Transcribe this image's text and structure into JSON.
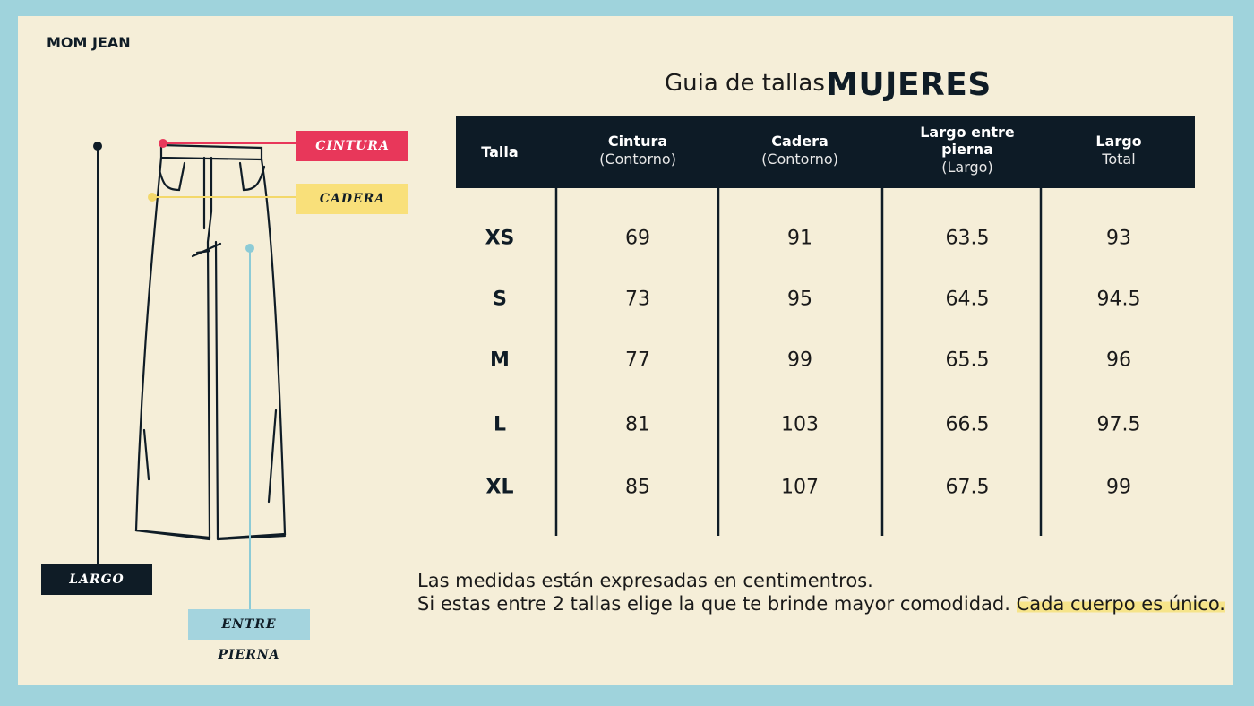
{
  "brand": "MOM JEAN",
  "title": {
    "prefix": "Guia de tallas",
    "emphasis": "MUJERES"
  },
  "diagram": {
    "waist": "CINTURA",
    "hip": "CADERA",
    "length": "LARGO",
    "inseam": "ENTRE PIERNA"
  },
  "table": {
    "header": [
      {
        "title": "Talla"
      },
      {
        "title": "Cintura",
        "subtitle": "(Contorno)"
      },
      {
        "title": "Cadera",
        "subtitle": "(Contorno)"
      },
      {
        "title": "Largo entre pierna",
        "subtitle": "(Largo)"
      },
      {
        "title": "Largo",
        "subtitle": "Total"
      }
    ],
    "rows": [
      [
        "XS",
        69,
        91,
        63.5,
        93
      ],
      [
        "S",
        73,
        95,
        64.5,
        94.5
      ],
      [
        "M",
        77,
        99,
        65.5,
        96
      ],
      [
        "L",
        81,
        103,
        66.5,
        97.5
      ],
      [
        "XL",
        85,
        107,
        67.5,
        99
      ]
    ]
  },
  "notes": {
    "line1": "Las medidas están expresadas en centimentros.",
    "line2": "Si estas entre 2 tallas elige la que te brinde mayor comodidad.",
    "highlight": "Cada cuerpo es único."
  }
}
